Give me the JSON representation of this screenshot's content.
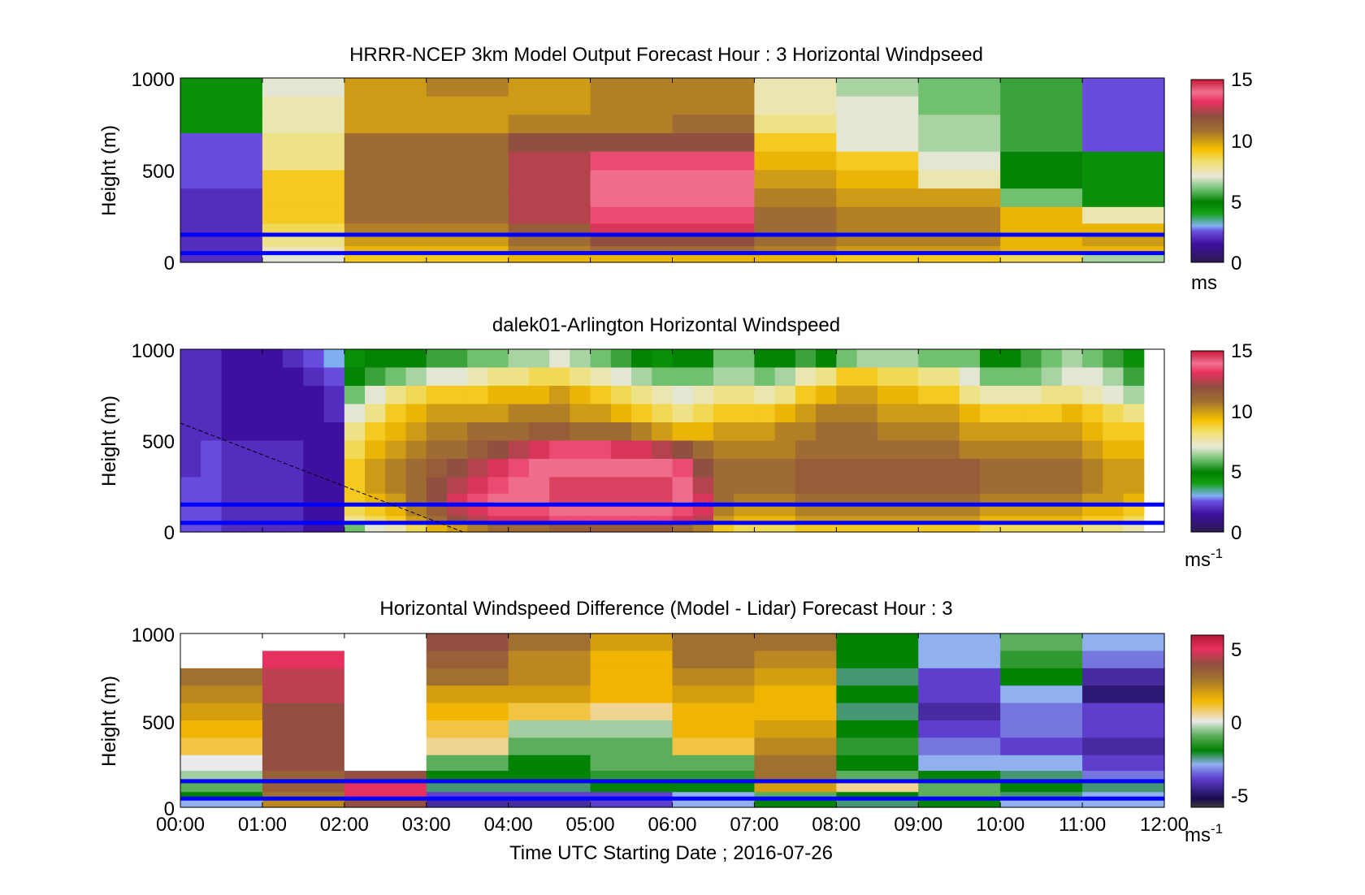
{
  "figure": {
    "xlabel": "Time UTC  Starting Date ; 2016-07-26",
    "xticks": [
      "00:00",
      "01:00",
      "02:00",
      "03:00",
      "04:00",
      "05:00",
      "06:00",
      "07:00",
      "08:00",
      "09:00",
      "10:00",
      "11:00",
      "12:00"
    ]
  },
  "chart_data": [
    {
      "type": "heatmap",
      "title": "HRRR-NCEP 3km Model Output   Forecast Hour : 3 Horizontal Windpseed",
      "ylabel": "Height (m)",
      "yticks": [
        "1000",
        "500",
        "0"
      ],
      "ylim": [
        0,
        1000
      ],
      "xlim": [
        "00:00",
        "12:00"
      ],
      "colorbar": {
        "ticks": [
          "15",
          "10",
          "5",
          "0"
        ],
        "range": [
          0,
          15
        ],
        "unit": "ms",
        "unit_sup": ""
      },
      "reference_lines_m": [
        150,
        50
      ],
      "x_hours": [
        0,
        1,
        2,
        3,
        4,
        5,
        6,
        7,
        8,
        9,
        10,
        11
      ],
      "heights_m": [
        950,
        850,
        750,
        650,
        550,
        450,
        350,
        250,
        170,
        115,
        60,
        20
      ],
      "values": [
        [
          4.5,
          7,
          10,
          10.5,
          10,
          10.5,
          10.5,
          7.5,
          6.5,
          6,
          5.5,
          2.5
        ],
        [
          4.5,
          7.5,
          10,
          10,
          10,
          10.5,
          10.5,
          7.5,
          7,
          6,
          5.5,
          2.5
        ],
        [
          4.5,
          7.5,
          10,
          10,
          10.5,
          10.5,
          11,
          8,
          7,
          6.5,
          5.5,
          2.5
        ],
        [
          2.5,
          8,
          11,
          11,
          12,
          12,
          12,
          9,
          7,
          6.5,
          5.5,
          2.5
        ],
        [
          2.5,
          8,
          11,
          11,
          12.5,
          13.5,
          13.5,
          9.5,
          9,
          7,
          5,
          4.5
        ],
        [
          2.5,
          9,
          11,
          11,
          12.5,
          14,
          14,
          10,
          9.5,
          7.5,
          5,
          4.5
        ],
        [
          2,
          9,
          11,
          11,
          12.5,
          14,
          14,
          10.5,
          10,
          10,
          6,
          4.5
        ],
        [
          2,
          9,
          11,
          11,
          12.5,
          13.5,
          13.5,
          11,
          10.5,
          10.5,
          9.5,
          7.5
        ],
        [
          2,
          8.5,
          10.5,
          10.5,
          11.5,
          13,
          13,
          11,
          10.5,
          10.5,
          9.5,
          9.5
        ],
        [
          2,
          8,
          10,
          10,
          11,
          12,
          12,
          11,
          10.5,
          10.5,
          9.5,
          10
        ],
        [
          2,
          7.5,
          9.5,
          9.5,
          10.5,
          11,
          11,
          10.5,
          10,
          10,
          9.5,
          9.5
        ],
        [
          2,
          7,
          9,
          9,
          9.5,
          9.5,
          9.5,
          9.5,
          9,
          9,
          8.5,
          6.5
        ]
      ]
    },
    {
      "type": "heatmap",
      "title": "dalek01-Arlington  Horizontal Windspeed",
      "ylabel": "Height (m)",
      "yticks": [
        "1000",
        "500",
        "0"
      ],
      "ylim": [
        0,
        1000
      ],
      "xlim": [
        "00:00",
        "12:00"
      ],
      "colorbar": {
        "ticks": [
          "15",
          "10",
          "5",
          "0"
        ],
        "range": [
          0,
          15
        ],
        "unit": "ms",
        "unit_sup": "-1"
      },
      "reference_lines_m": [
        150,
        50
      ],
      "x_hours": [
        0,
        0.25,
        0.5,
        0.75,
        1,
        1.25,
        1.5,
        1.75,
        2,
        2.25,
        2.5,
        2.75,
        3,
        3.25,
        3.5,
        3.75,
        4,
        4.25,
        4.5,
        4.75,
        5,
        5.25,
        5.5,
        5.75,
        6,
        6.25,
        6.5,
        6.75,
        7,
        7.25,
        7.5,
        7.75,
        8,
        8.25,
        8.5,
        8.75,
        9,
        9.25,
        9.5,
        9.75,
        10,
        10.25,
        10.5,
        10.75,
        11,
        11.25,
        11.5
      ],
      "heights_m": [
        950,
        850,
        750,
        650,
        550,
        450,
        350,
        250,
        170,
        115,
        60,
        20
      ],
      "values": [
        [
          2,
          2,
          1.5,
          1.5,
          1.5,
          2,
          2.5,
          3,
          4.5,
          5,
          5,
          5,
          5.5,
          5.5,
          6,
          6,
          6.5,
          6.5,
          7,
          6.5,
          6,
          5.5,
          5,
          4.5,
          5,
          5,
          6,
          6,
          5,
          5,
          5.5,
          5,
          6,
          6.5,
          6.5,
          6.5,
          6,
          6,
          6,
          5,
          5,
          5.5,
          6,
          6.5,
          6,
          5.5,
          4.5
        ],
        [
          2,
          2,
          1.5,
          1.5,
          1.5,
          1.5,
          2,
          2.5,
          5,
          5.5,
          6,
          6.5,
          7,
          7,
          7.5,
          8,
          8,
          8.5,
          8.5,
          8,
          7.5,
          7,
          6.5,
          6,
          6,
          6,
          6.5,
          6.5,
          6,
          6.5,
          7.5,
          8,
          9,
          9,
          8.5,
          8.5,
          8,
          8,
          7,
          6,
          6,
          6,
          6.5,
          7,
          7,
          6.5,
          5.5
        ],
        [
          2,
          2,
          1.5,
          1.5,
          1.5,
          1.5,
          1.5,
          2,
          6,
          7,
          8,
          8.5,
          9,
          9,
          9,
          9.5,
          9.5,
          9.5,
          10,
          9.5,
          9,
          8.5,
          8,
          7.5,
          7,
          7.5,
          8,
          8,
          7.5,
          8,
          9,
          9.5,
          10,
          10,
          9.5,
          9.5,
          9,
          9,
          8,
          7.5,
          7.5,
          7.5,
          8,
          8,
          7.5,
          7,
          6.5
        ],
        [
          2,
          2,
          1.5,
          1.5,
          1.5,
          1.5,
          1.5,
          2,
          7,
          8,
          9,
          9.5,
          10,
          10,
          10,
          10,
          10.5,
          10.5,
          10.5,
          10,
          10,
          9.5,
          9,
          8.5,
          8,
          8.5,
          9,
          9,
          9,
          9.5,
          10,
          10.5,
          10.5,
          10.5,
          10,
          10,
          10,
          10,
          9.5,
          9,
          9,
          9,
          9,
          9.5,
          9,
          8.5,
          8
        ],
        [
          2,
          2,
          1.5,
          1.5,
          1.5,
          1.5,
          1.5,
          1.5,
          8,
          9,
          9.5,
          10,
          10.5,
          10.5,
          11,
          11,
          11,
          11.5,
          11.5,
          11,
          11,
          11,
          10.5,
          10,
          9.5,
          9.5,
          10,
          10,
          10,
          10.5,
          10.5,
          11,
          11,
          11,
          10.5,
          10.5,
          10.5,
          10.5,
          10,
          10,
          10,
          10,
          10,
          10,
          9.5,
          9,
          9
        ],
        [
          2,
          2.5,
          2,
          2,
          2,
          2,
          1.5,
          1.5,
          8.5,
          9.5,
          10,
          10.5,
          11,
          11,
          11.5,
          12,
          12.5,
          13,
          13.5,
          13.5,
          13.5,
          13,
          13,
          12.5,
          12,
          11,
          10.5,
          10.5,
          10.5,
          10.5,
          11,
          11,
          11,
          11,
          11,
          11,
          11,
          11,
          10.5,
          10.5,
          10.5,
          10.5,
          10.5,
          10.5,
          10,
          9.5,
          9.5
        ],
        [
          2,
          2.5,
          2,
          2,
          2,
          2,
          1.5,
          1.5,
          9,
          10,
          10.5,
          11,
          11.5,
          12,
          12.5,
          13,
          13.5,
          14,
          14,
          14,
          14,
          14,
          14,
          14,
          13.5,
          12,
          11,
          11,
          11,
          11,
          11.5,
          11.5,
          11.5,
          11.5,
          11.5,
          11.5,
          11.5,
          11.5,
          11.5,
          11,
          11,
          11,
          11,
          11,
          10.5,
          10,
          10
        ],
        [
          2.5,
          2.5,
          2,
          2,
          2,
          2,
          1.5,
          1.5,
          9,
          10,
          10.5,
          11,
          12,
          12.5,
          13,
          13.5,
          14,
          14,
          14.5,
          14.5,
          14.5,
          14.5,
          14.5,
          14.5,
          14,
          12.5,
          11,
          11,
          11,
          11,
          11.5,
          11.5,
          11.5,
          11.5,
          11.5,
          11.5,
          11.5,
          11.5,
          11.5,
          11,
          11,
          11,
          11,
          11,
          10.5,
          10,
          10
        ],
        [
          2.5,
          2.5,
          2,
          2,
          2,
          2,
          1.5,
          1.5,
          9,
          9.5,
          10,
          11,
          12,
          13,
          13.5,
          14,
          14,
          14,
          14.5,
          14.5,
          14.5,
          14.5,
          14.5,
          14.5,
          14,
          13,
          11,
          10.5,
          10.5,
          10.5,
          11,
          11,
          11,
          11,
          11,
          11,
          11,
          11,
          11,
          10.5,
          10.5,
          10.5,
          10.5,
          10.5,
          10,
          10,
          9.5
        ],
        [
          2.5,
          2.5,
          2,
          2,
          2,
          2,
          1.5,
          1.5,
          8.5,
          9,
          9.5,
          10.5,
          11.5,
          12.5,
          13,
          13.5,
          13.5,
          13.5,
          14,
          14,
          14,
          14,
          14,
          14,
          13.5,
          13,
          10.5,
          10,
          10,
          10,
          10.5,
          10.5,
          10.5,
          10.5,
          10.5,
          10.5,
          10.5,
          10.5,
          10.5,
          10,
          10,
          10,
          10,
          10,
          9.5,
          9.5,
          9
        ],
        [
          2.5,
          2.5,
          2,
          2,
          2,
          2,
          1.5,
          1.5,
          8,
          8.5,
          9,
          10,
          11,
          12,
          12.5,
          13,
          13,
          13,
          13.5,
          13.5,
          13.5,
          13.5,
          13.5,
          13.5,
          13,
          12.5,
          10,
          9.5,
          9.5,
          9.5,
          10,
          10,
          10,
          10,
          10,
          10,
          10,
          10,
          10,
          9.5,
          9.5,
          9.5,
          9.5,
          9.5,
          9,
          9,
          8.5
        ],
        [
          2.5,
          2.5,
          2,
          2,
          2,
          2,
          1.5,
          1.5,
          6,
          7,
          7.5,
          8.5,
          9.5,
          10,
          10.5,
          11,
          11,
          11,
          11.5,
          11.5,
          11.5,
          11.5,
          11.5,
          11.5,
          11,
          10.5,
          9,
          8.5,
          8.5,
          8.5,
          9,
          9,
          9,
          9,
          9,
          9,
          9,
          9,
          9,
          8.5,
          8.5,
          8.5,
          8.5,
          8.5,
          8,
          8,
          7.5
        ]
      ]
    },
    {
      "type": "heatmap",
      "title": "Horizontal Windspeed Difference (Model - Lidar) Forecast Hour : 3",
      "ylabel": "Height (m)",
      "yticks": [
        "1000",
        "500",
        "0"
      ],
      "ylim": [
        0,
        1000
      ],
      "xlim": [
        "00:00",
        "12:00"
      ],
      "colorbar": {
        "ticks": [
          "5",
          "0",
          "-5"
        ],
        "range": [
          -6,
          6
        ],
        "unit": "ms",
        "unit_sup": "-1"
      },
      "reference_lines_m": [
        150,
        50
      ],
      "x_hours": [
        0,
        1,
        2,
        3,
        4,
        5,
        6,
        7,
        8,
        9,
        10,
        11
      ],
      "heights_m": [
        950,
        850,
        750,
        650,
        550,
        450,
        350,
        250,
        170,
        115,
        60,
        20
      ],
      "values": [
        [
          null,
          null,
          null,
          4,
          3,
          2,
          3,
          3,
          -2,
          -3,
          -1,
          -3
        ],
        [
          null,
          5,
          null,
          3.5,
          2.5,
          1.5,
          3,
          2.5,
          -2,
          -3,
          -1.5,
          -3.5
        ],
        [
          3,
          4.5,
          null,
          3,
          2.5,
          1.5,
          2.5,
          2,
          -2.5,
          -4,
          -2,
          -4.5
        ],
        [
          2.5,
          4.5,
          null,
          2,
          2,
          1.5,
          2,
          1.5,
          -2,
          -4,
          -3,
          -5
        ],
        [
          2,
          4,
          null,
          1.5,
          1,
          0.5,
          1.5,
          1.5,
          -2.5,
          -4.5,
          -3.5,
          -4
        ],
        [
          1.5,
          4,
          null,
          1,
          -0.5,
          -0.5,
          1.5,
          2,
          -2,
          -4,
          -3.5,
          -4
        ],
        [
          1,
          4,
          null,
          0.5,
          -1,
          -1,
          1,
          2.5,
          -1.5,
          -3.5,
          -4,
          -4.5
        ],
        [
          0,
          4,
          null,
          -1,
          -2,
          -1,
          -1,
          3,
          -2,
          -3,
          -3,
          -4
        ],
        [
          -0.5,
          3.5,
          4,
          -2,
          -2,
          -1.5,
          -1.5,
          3,
          -1,
          -2,
          -2.5,
          -3.5
        ],
        [
          -1,
          3.5,
          5,
          -2.5,
          -2.5,
          -2,
          -2,
          2,
          0.5,
          -1,
          -2,
          -2.5
        ],
        [
          -2,
          3,
          5,
          -4,
          -4,
          -4,
          -3,
          -1,
          -2,
          -1,
          -2.5,
          -3
        ],
        [
          -3,
          2.5,
          4,
          -4.5,
          -4.5,
          -4,
          -3,
          -2,
          -2.5,
          -2,
          -3,
          -3
        ]
      ]
    }
  ],
  "colormaps": {
    "speed": [
      [
        "#2a1a50",
        0
      ],
      [
        "#3e10a0",
        0.1
      ],
      [
        "#6a50e0",
        0.17
      ],
      [
        "#80b0f0",
        0.2
      ],
      [
        "#12a010",
        0.27
      ],
      [
        "#008000",
        0.33
      ],
      [
        "#70c070",
        0.4
      ],
      [
        "#e8e8d8",
        0.47
      ],
      [
        "#f0e070",
        0.55
      ],
      [
        "#f5c000",
        0.62
      ],
      [
        "#a07030",
        0.72
      ],
      [
        "#905040",
        0.8
      ],
      [
        "#e83060",
        0.88
      ],
      [
        "#f07090",
        0.93
      ],
      [
        "#c81838",
        1
      ]
    ],
    "diff": [
      [
        "#3c3c3c",
        0
      ],
      [
        "#1a0a50",
        0.05
      ],
      [
        "#6040d0",
        0.17
      ],
      [
        "#90b0f0",
        0.25
      ],
      [
        "#008000",
        0.33
      ],
      [
        "#60b060",
        0.42
      ],
      [
        "#eaeaea",
        0.5
      ],
      [
        "#f0d080",
        0.55
      ],
      [
        "#f2b800",
        0.62
      ],
      [
        "#a07030",
        0.75
      ],
      [
        "#905040",
        0.83
      ],
      [
        "#e83060",
        0.92
      ],
      [
        "#b01830",
        1
      ]
    ],
    "reference_line_color": "#0000ff",
    "missing_color": "#ffffff"
  }
}
